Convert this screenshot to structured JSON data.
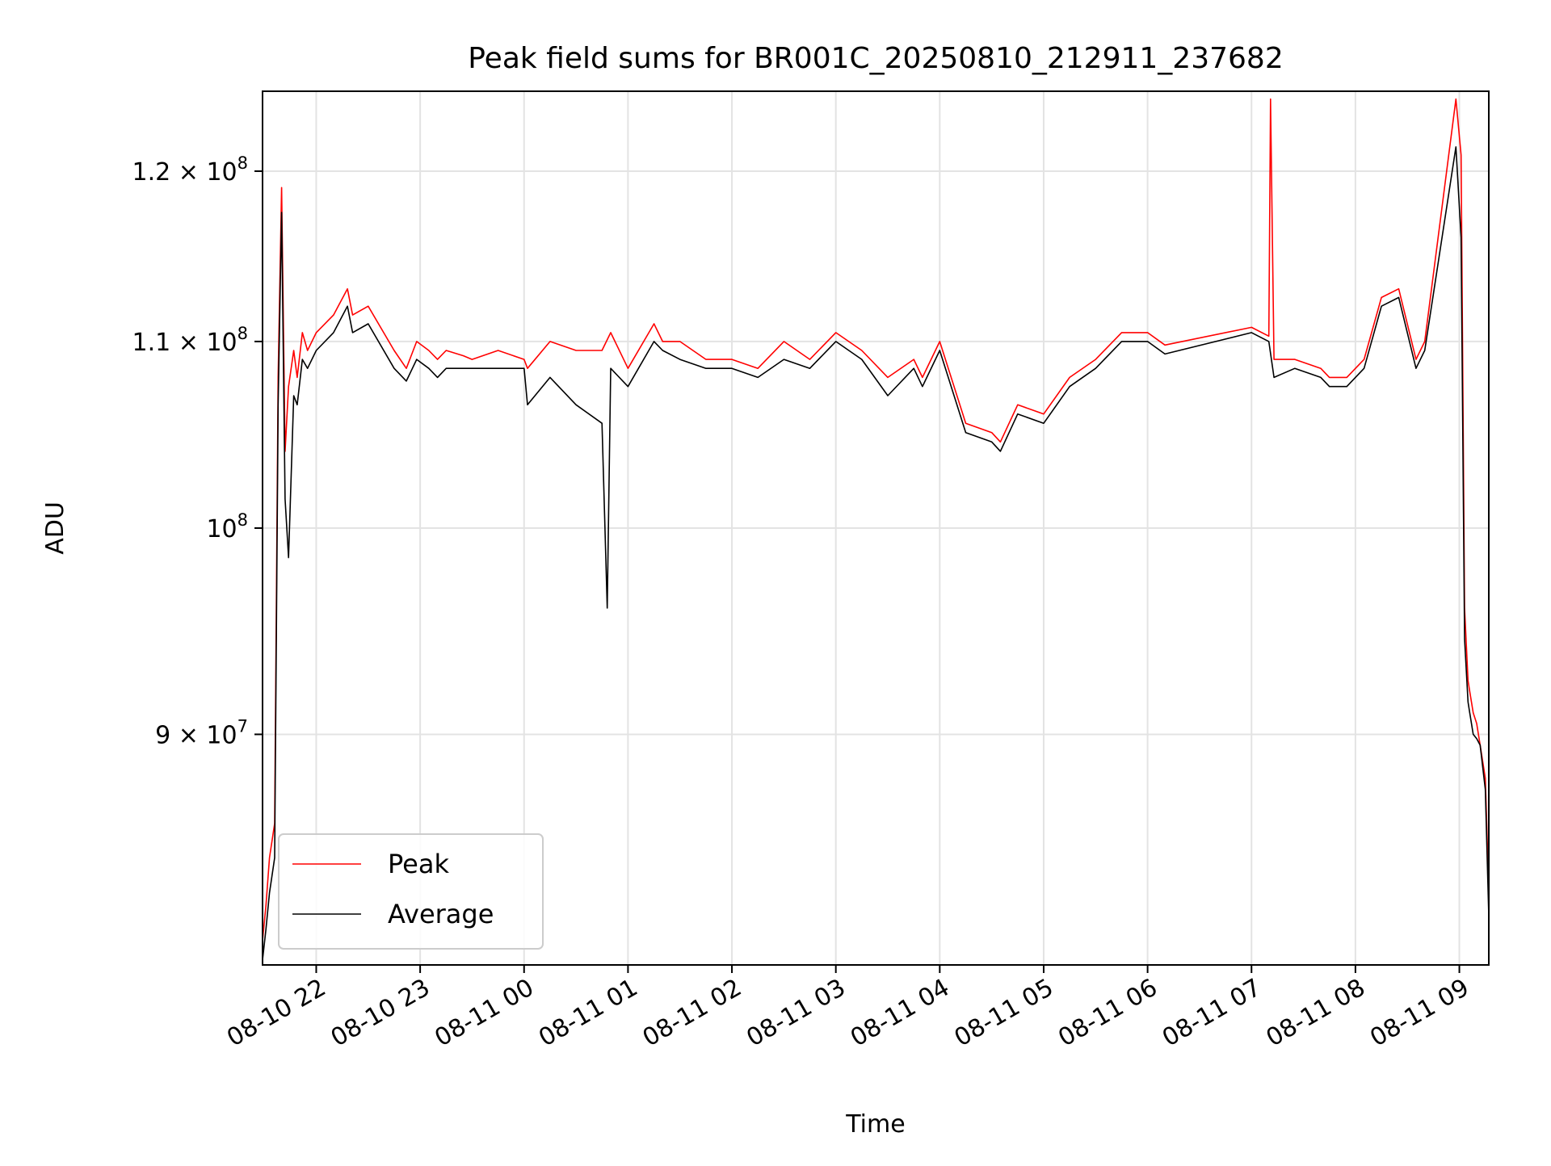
{
  "chart_data": {
    "type": "line",
    "title": "Peak field sums for BR001C_20250810_212911_237682",
    "xlabel": "Time",
    "ylabel": "ADU",
    "y_scale": "log",
    "grid": true,
    "legend_position": "lower-left",
    "xlim": [
      "2025-08-10 21:29",
      "2025-08-11 09:17"
    ],
    "ylim": [
      80000000,
      125000000
    ],
    "x_ticks": [
      {
        "value": "2025-08-10 22:00",
        "label": "08-10 22"
      },
      {
        "value": "2025-08-10 23:00",
        "label": "08-10 23"
      },
      {
        "value": "2025-08-11 00:00",
        "label": "08-11 00"
      },
      {
        "value": "2025-08-11 01:00",
        "label": "08-11 01"
      },
      {
        "value": "2025-08-11 02:00",
        "label": "08-11 02"
      },
      {
        "value": "2025-08-11 03:00",
        "label": "08-11 03"
      },
      {
        "value": "2025-08-11 04:00",
        "label": "08-11 04"
      },
      {
        "value": "2025-08-11 05:00",
        "label": "08-11 05"
      },
      {
        "value": "2025-08-11 06:00",
        "label": "08-11 06"
      },
      {
        "value": "2025-08-11 07:00",
        "label": "08-11 07"
      },
      {
        "value": "2025-08-11 08:00",
        "label": "08-11 08"
      },
      {
        "value": "2025-08-11 09:00",
        "label": "08-11 09"
      }
    ],
    "y_ticks": [
      {
        "value": 90000000,
        "mantissa": "9",
        "exponent": "7",
        "label": "9 × 10^7"
      },
      {
        "value": 100000000,
        "mantissa": "",
        "exponent": "8",
        "label": "10^8"
      },
      {
        "value": 110000000,
        "mantissa": "1.1",
        "exponent": "8",
        "label": "1.1 × 10^8"
      },
      {
        "value": 120000000,
        "mantissa": "1.2",
        "exponent": "8",
        "label": "1.2 × 10^8"
      }
    ],
    "series": [
      {
        "name": "Peak",
        "color": "#ff0000",
        "x": [
          "2025-08-10 21:29",
          "2025-08-10 21:31",
          "2025-08-10 21:33",
          "2025-08-10 21:36",
          "2025-08-10 21:38",
          "2025-08-10 21:40",
          "2025-08-10 21:42",
          "2025-08-10 21:44",
          "2025-08-10 21:47",
          "2025-08-10 21:49",
          "2025-08-10 21:52",
          "2025-08-10 21:55",
          "2025-08-10 22:00",
          "2025-08-10 22:10",
          "2025-08-10 22:18",
          "2025-08-10 22:21",
          "2025-08-10 22:30",
          "2025-08-10 22:45",
          "2025-08-10 22:52",
          "2025-08-10 22:58",
          "2025-08-10 23:05",
          "2025-08-10 23:10",
          "2025-08-10 23:15",
          "2025-08-10 23:25",
          "2025-08-10 23:30",
          "2025-08-10 23:45",
          "2025-08-11 00:00",
          "2025-08-11 00:02",
          "2025-08-11 00:15",
          "2025-08-11 00:30",
          "2025-08-11 00:45",
          "2025-08-11 00:50",
          "2025-08-11 01:00",
          "2025-08-11 01:15",
          "2025-08-11 01:20",
          "2025-08-11 01:30",
          "2025-08-11 01:45",
          "2025-08-11 02:00",
          "2025-08-11 02:15",
          "2025-08-11 02:30",
          "2025-08-11 02:45",
          "2025-08-11 03:00",
          "2025-08-11 03:15",
          "2025-08-11 03:30",
          "2025-08-11 03:45",
          "2025-08-11 03:50",
          "2025-08-11 04:00",
          "2025-08-11 04:15",
          "2025-08-11 04:30",
          "2025-08-11 04:35",
          "2025-08-11 04:45",
          "2025-08-11 05:00",
          "2025-08-11 05:15",
          "2025-08-11 05:30",
          "2025-08-11 05:45",
          "2025-08-11 06:00",
          "2025-08-11 06:10",
          "2025-08-11 07:00",
          "2025-08-11 07:10",
          "2025-08-11 07:11",
          "2025-08-11 07:13",
          "2025-08-11 07:25",
          "2025-08-11 07:40",
          "2025-08-11 07:45",
          "2025-08-11 07:55",
          "2025-08-11 08:05",
          "2025-08-11 08:15",
          "2025-08-11 08:25",
          "2025-08-11 08:35",
          "2025-08-11 08:40",
          "2025-08-11 08:58",
          "2025-08-11 09:01",
          "2025-08-11 09:03",
          "2025-08-11 09:05",
          "2025-08-11 09:06",
          "2025-08-11 09:08",
          "2025-08-11 09:10",
          "2025-08-11 09:12",
          "2025-08-11 09:15",
          "2025-08-11 09:17"
        ],
        "y": [
          81000000,
          82500000,
          84500000,
          86000000,
          108000000,
          119000000,
          104000000,
          107500000,
          109500000,
          108000000,
          110500000,
          109500000,
          110500000,
          111500000,
          113000000,
          111500000,
          112000000,
          109500000,
          108500000,
          110000000,
          109500000,
          109000000,
          109500000,
          109200000,
          109000000,
          109500000,
          109000000,
          108500000,
          110000000,
          109500000,
          109500000,
          110500000,
          108500000,
          111000000,
          110000000,
          110000000,
          109000000,
          109000000,
          108500000,
          110000000,
          109000000,
          110500000,
          109500000,
          108000000,
          109000000,
          108000000,
          110000000,
          105500000,
          105000000,
          104500000,
          106500000,
          106000000,
          108000000,
          109000000,
          110500000,
          110500000,
          109800000,
          110800000,
          110300000,
          124500000,
          109000000,
          109000000,
          108500000,
          108000000,
          108000000,
          109000000,
          112500000,
          113000000,
          109000000,
          110000000,
          124500000,
          121000000,
          96000000,
          92500000,
          92000000,
          91000000,
          90500000,
          89500000,
          88000000,
          83000000
        ]
      },
      {
        "name": "Average",
        "color": "#000000",
        "x": [
          "2025-08-10 21:29",
          "2025-08-10 21:31",
          "2025-08-10 21:33",
          "2025-08-10 21:36",
          "2025-08-10 21:38",
          "2025-08-10 21:40",
          "2025-08-10 21:42",
          "2025-08-10 21:44",
          "2025-08-10 21:47",
          "2025-08-10 21:49",
          "2025-08-10 21:52",
          "2025-08-10 21:55",
          "2025-08-10 22:00",
          "2025-08-10 22:10",
          "2025-08-10 22:18",
          "2025-08-10 22:21",
          "2025-08-10 22:30",
          "2025-08-10 22:45",
          "2025-08-10 22:52",
          "2025-08-10 22:58",
          "2025-08-10 23:05",
          "2025-08-10 23:10",
          "2025-08-10 23:15",
          "2025-08-10 23:25",
          "2025-08-10 23:30",
          "2025-08-10 23:45",
          "2025-08-11 00:00",
          "2025-08-11 00:02",
          "2025-08-11 00:15",
          "2025-08-11 00:30",
          "2025-08-11 00:45",
          "2025-08-11 00:48",
          "2025-08-11 00:50",
          "2025-08-11 01:00",
          "2025-08-11 01:15",
          "2025-08-11 01:20",
          "2025-08-11 01:30",
          "2025-08-11 01:45",
          "2025-08-11 02:00",
          "2025-08-11 02:15",
          "2025-08-11 02:30",
          "2025-08-11 02:45",
          "2025-08-11 03:00",
          "2025-08-11 03:15",
          "2025-08-11 03:30",
          "2025-08-11 03:45",
          "2025-08-11 03:50",
          "2025-08-11 04:00",
          "2025-08-11 04:15",
          "2025-08-11 04:30",
          "2025-08-11 04:35",
          "2025-08-11 04:45",
          "2025-08-11 05:00",
          "2025-08-11 05:15",
          "2025-08-11 05:30",
          "2025-08-11 05:45",
          "2025-08-11 06:00",
          "2025-08-11 06:10",
          "2025-08-11 07:00",
          "2025-08-11 07:10",
          "2025-08-11 07:13",
          "2025-08-11 07:25",
          "2025-08-11 07:40",
          "2025-08-11 07:45",
          "2025-08-11 07:55",
          "2025-08-11 08:05",
          "2025-08-11 08:15",
          "2025-08-11 08:25",
          "2025-08-11 08:35",
          "2025-08-11 08:40",
          "2025-08-11 08:58",
          "2025-08-11 09:01",
          "2025-08-11 09:03",
          "2025-08-11 09:05",
          "2025-08-11 09:06",
          "2025-08-11 09:08",
          "2025-08-11 09:10",
          "2025-08-11 09:12",
          "2025-08-11 09:15",
          "2025-08-11 09:17"
        ],
        "y": [
          80200000,
          81500000,
          83000000,
          84500000,
          106500000,
          117500000,
          101500000,
          98500000,
          107000000,
          106500000,
          109000000,
          108500000,
          109500000,
          110500000,
          112000000,
          110500000,
          111000000,
          108500000,
          107800000,
          109000000,
          108500000,
          108000000,
          108500000,
          108500000,
          108500000,
          108500000,
          108500000,
          106500000,
          108000000,
          106500000,
          105500000,
          96000000,
          108500000,
          107500000,
          110000000,
          109500000,
          109000000,
          108500000,
          108500000,
          108000000,
          109000000,
          108500000,
          110000000,
          109000000,
          107000000,
          108500000,
          107500000,
          109500000,
          105000000,
          104500000,
          104000000,
          106000000,
          105500000,
          107500000,
          108500000,
          110000000,
          110000000,
          109300000,
          110500000,
          110000000,
          108000000,
          108500000,
          108000000,
          107500000,
          107500000,
          108500000,
          112000000,
          112500000,
          108500000,
          109500000,
          121500000,
          116000000,
          94500000,
          91500000,
          91000000,
          90000000,
          89800000,
          89500000,
          87500000,
          82000000
        ]
      }
    ]
  }
}
